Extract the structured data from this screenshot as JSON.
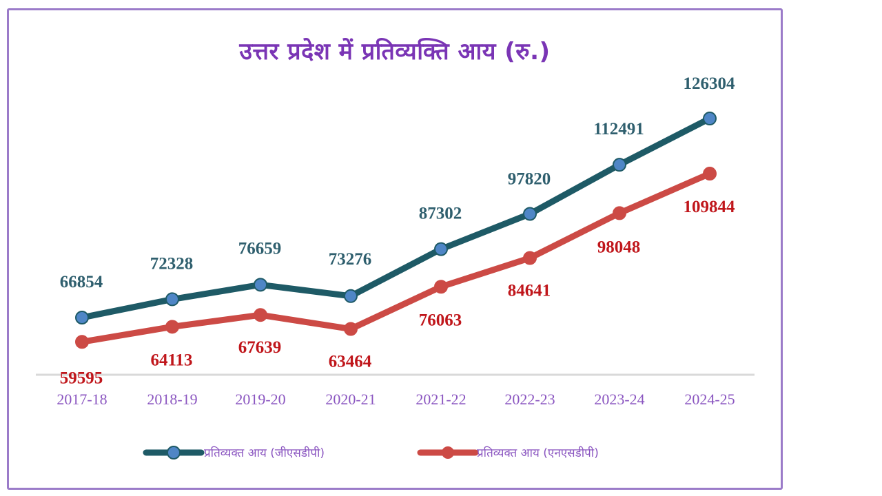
{
  "chart_data": {
    "type": "line",
    "title": "उत्तर प्रदेश में प्रतिव्यक्ति आय (रु.)",
    "xlabel": "",
    "ylabel": "",
    "categories": [
      "2017-18",
      "2018-19",
      "2019-20",
      "2020-21",
      "2021-22",
      "2022-23",
      "2023-24",
      "2024-25"
    ],
    "series": [
      {
        "name": "प्रतिव्यक्त आय (जीएसडीपी)",
        "color": "#1e5a66",
        "marker_color": "#4f86c6",
        "values": [
          66854,
          72328,
          76659,
          73276,
          87302,
          97820,
          112491,
          126304
        ]
      },
      {
        "name": "प्रतिव्यक्त आय (एनएसडीपी)",
        "color": "#cc4a45",
        "marker_color": "#cc4a45",
        "values": [
          59595,
          64113,
          67639,
          63464,
          76063,
          84641,
          98048,
          109844
        ]
      }
    ],
    "grid": false,
    "legend_position": "bottom",
    "data_labels": true,
    "label_colors": {
      "gsdp": "#2f5f6e",
      "nsdp": "#c0161b"
    }
  }
}
